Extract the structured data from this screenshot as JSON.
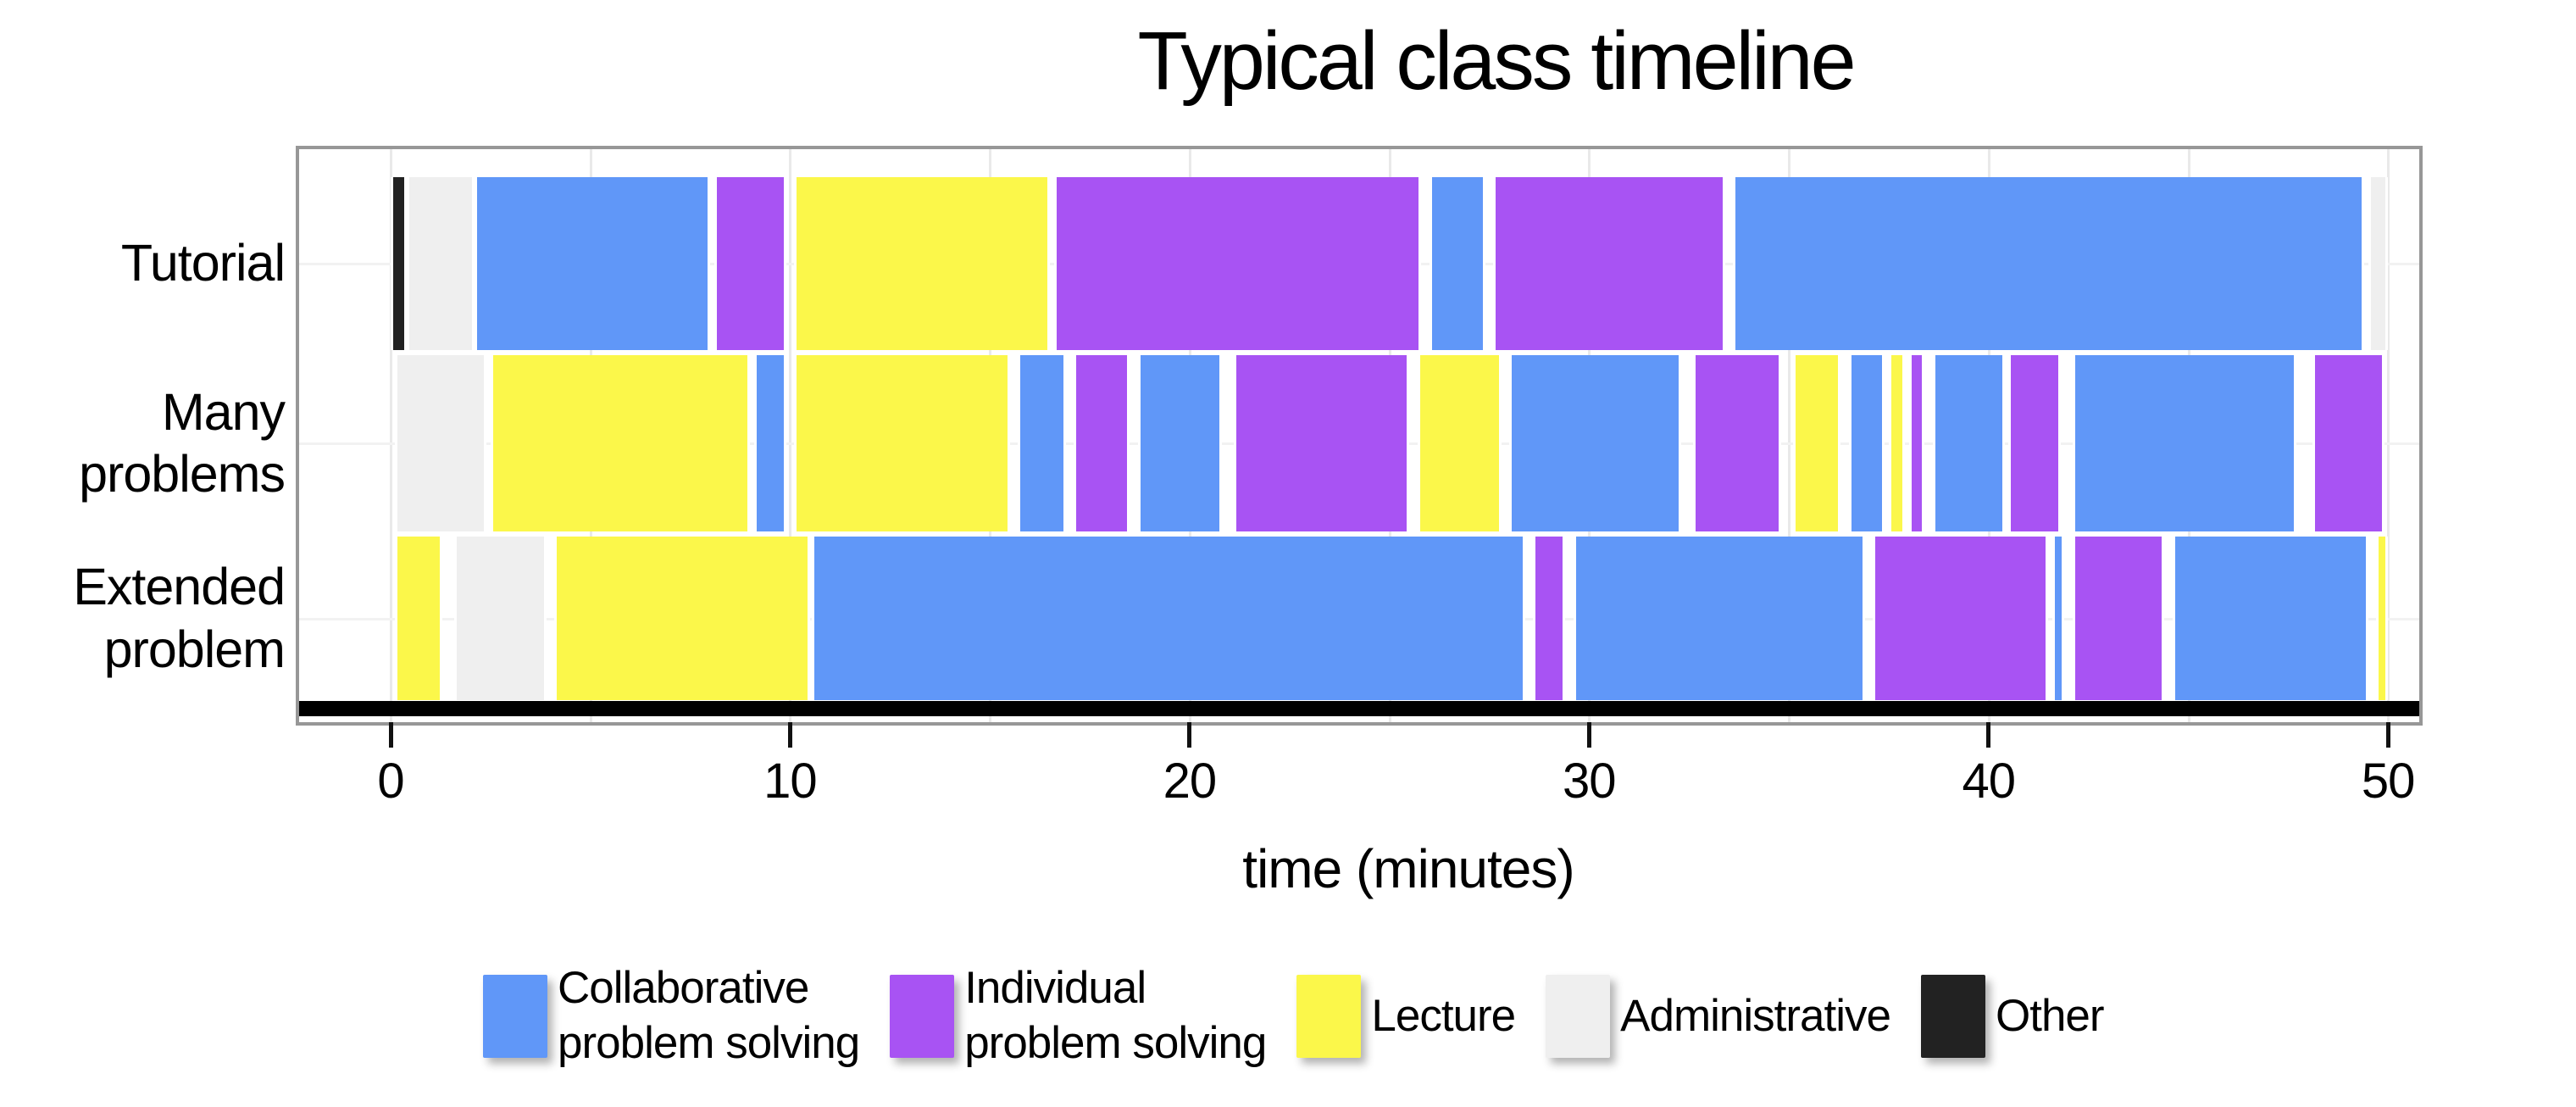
{
  "title": "Typical class timeline",
  "x_axis": {
    "label": "time (minutes)",
    "tick_labels": [
      "0",
      "10",
      "20",
      "30",
      "40",
      "50"
    ]
  },
  "legend": {
    "items": [
      {
        "key": "collaborative",
        "label": "Collaborative\nproblem solving"
      },
      {
        "key": "individual",
        "label": "Individual\nproblem solving"
      },
      {
        "key": "lecture",
        "label": "Lecture"
      },
      {
        "key": "administrative",
        "label": "Administrative"
      },
      {
        "key": "other",
        "label": "Other"
      }
    ]
  },
  "chart_data": {
    "type": "timeline",
    "title": "Typical class timeline",
    "xlabel": "time (minutes)",
    "xlim": [
      0,
      50
    ],
    "xticks": [
      0,
      10,
      20,
      30,
      40,
      50
    ],
    "minor_grid_step": 5,
    "grid": true,
    "legend_position": "bottom",
    "units": "minutes",
    "activities": {
      "collaborative": {
        "label": "Collaborative problem solving",
        "color": "#6097F8"
      },
      "individual": {
        "label": "Individual problem solving",
        "color": "#A853F3"
      },
      "lecture": {
        "label": "Lecture",
        "color": "#FBF74A"
      },
      "administrative": {
        "label": "Administrative",
        "color": "#EFEFEF"
      },
      "other": {
        "label": "Other",
        "color": "#222222"
      }
    },
    "rows": [
      {
        "label": "Tutorial",
        "label_lines": [
          "Tutorial"
        ],
        "segments": [
          {
            "activity": "other",
            "start": 0.0,
            "end": 0.4
          },
          {
            "activity": "administrative",
            "start": 0.4,
            "end": 2.1
          },
          {
            "activity": "collaborative",
            "start": 2.1,
            "end": 8.0
          },
          {
            "activity": "individual",
            "start": 8.1,
            "end": 9.9
          },
          {
            "activity": "lecture",
            "start": 10.1,
            "end": 16.5
          },
          {
            "activity": "individual",
            "start": 16.6,
            "end": 25.8
          },
          {
            "activity": "collaborative",
            "start": 26.0,
            "end": 27.4
          },
          {
            "activity": "individual",
            "start": 27.6,
            "end": 33.4
          },
          {
            "activity": "collaborative",
            "start": 33.6,
            "end": 49.4
          },
          {
            "activity": "administrative",
            "start": 49.5,
            "end": 50.0
          }
        ]
      },
      {
        "label": "Many problems",
        "label_lines": [
          "Many",
          "problems"
        ],
        "segments": [
          {
            "activity": "administrative",
            "start": 0.1,
            "end": 2.4
          },
          {
            "activity": "lecture",
            "start": 2.5,
            "end": 9.0
          },
          {
            "activity": "collaborative",
            "start": 9.1,
            "end": 9.9
          },
          {
            "activity": "lecture",
            "start": 10.1,
            "end": 15.5
          },
          {
            "activity": "collaborative",
            "start": 15.7,
            "end": 16.9
          },
          {
            "activity": "individual",
            "start": 17.1,
            "end": 18.5
          },
          {
            "activity": "collaborative",
            "start": 18.7,
            "end": 20.8
          },
          {
            "activity": "individual",
            "start": 21.1,
            "end": 25.5
          },
          {
            "activity": "lecture",
            "start": 25.7,
            "end": 27.8
          },
          {
            "activity": "collaborative",
            "start": 28.0,
            "end": 32.3
          },
          {
            "activity": "individual",
            "start": 32.6,
            "end": 34.8
          },
          {
            "activity": "lecture",
            "start": 35.1,
            "end": 36.3
          },
          {
            "activity": "collaborative",
            "start": 36.5,
            "end": 37.4
          },
          {
            "activity": "lecture",
            "start": 37.5,
            "end": 37.9
          },
          {
            "activity": "individual",
            "start": 38.0,
            "end": 38.4
          },
          {
            "activity": "collaborative",
            "start": 38.6,
            "end": 40.4
          },
          {
            "activity": "individual",
            "start": 40.5,
            "end": 41.8
          },
          {
            "activity": "collaborative",
            "start": 42.1,
            "end": 47.7
          },
          {
            "activity": "individual",
            "start": 48.1,
            "end": 49.9
          }
        ]
      },
      {
        "label": "Extended problem",
        "label_lines": [
          "Extended",
          "problem"
        ],
        "segments": [
          {
            "activity": "lecture",
            "start": 0.1,
            "end": 1.3
          },
          {
            "activity": "administrative",
            "start": 1.6,
            "end": 3.9
          },
          {
            "activity": "lecture",
            "start": 4.1,
            "end": 10.5
          },
          {
            "activity": "collaborative",
            "start": 10.55,
            "end": 28.4
          },
          {
            "activity": "individual",
            "start": 28.6,
            "end": 29.4
          },
          {
            "activity": "collaborative",
            "start": 29.6,
            "end": 36.9
          },
          {
            "activity": "individual",
            "start": 37.1,
            "end": 41.5
          },
          {
            "activity": "collaborative",
            "start": 41.6,
            "end": 41.9
          },
          {
            "activity": "individual",
            "start": 42.1,
            "end": 44.4
          },
          {
            "activity": "collaborative",
            "start": 44.6,
            "end": 49.5
          },
          {
            "activity": "lecture",
            "start": 49.7,
            "end": 50.0
          }
        ]
      }
    ]
  }
}
